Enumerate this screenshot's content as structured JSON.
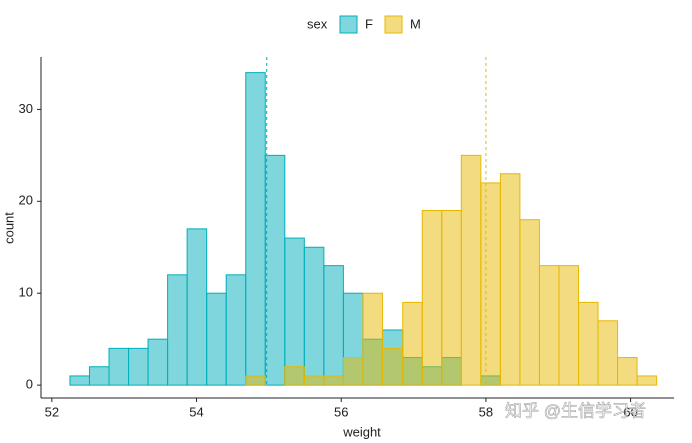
{
  "chart_data": {
    "type": "histogram",
    "legend_title": "sex",
    "bins": [
      52.25,
      52.52,
      52.79,
      53.06,
      53.33,
      53.6,
      53.87,
      54.14,
      54.41,
      54.68,
      54.95,
      55.22,
      55.49,
      55.76,
      56.03,
      56.3,
      56.57,
      56.85,
      57.12,
      57.39,
      57.66,
      57.93,
      58.2,
      58.47,
      58.74,
      59.01,
      59.28,
      59.55,
      59.82,
      60.09,
      60.36
    ],
    "series": [
      {
        "name": "F",
        "color": "#00AFBB",
        "mean": 54.97,
        "values": [
          1,
          2,
          4,
          4,
          5,
          12,
          17,
          10,
          12,
          34,
          25,
          16,
          15,
          13,
          10,
          5,
          6,
          3,
          2,
          3,
          0,
          1,
          0,
          0,
          0,
          0,
          0,
          0,
          0,
          0
        ]
      },
      {
        "name": "M",
        "color": "#E7B800",
        "mean": 58.0,
        "values": [
          0,
          0,
          0,
          0,
          0,
          0,
          0,
          0,
          0,
          1,
          0,
          2,
          1,
          1,
          3,
          10,
          4,
          9,
          19,
          19,
          25,
          22,
          23,
          18,
          13,
          13,
          9,
          7,
          3,
          1
        ]
      }
    ],
    "xlabel": "weight",
    "ylabel": "count",
    "xlim": [
      51.85,
      60.6
    ],
    "xticks": [
      52,
      54,
      56,
      58,
      60
    ],
    "ylim": [
      -1.4,
      35.7
    ],
    "yticks": [
      0,
      10,
      20,
      30
    ],
    "legend_position": "top",
    "watermark": "知乎 @生信学习者"
  }
}
